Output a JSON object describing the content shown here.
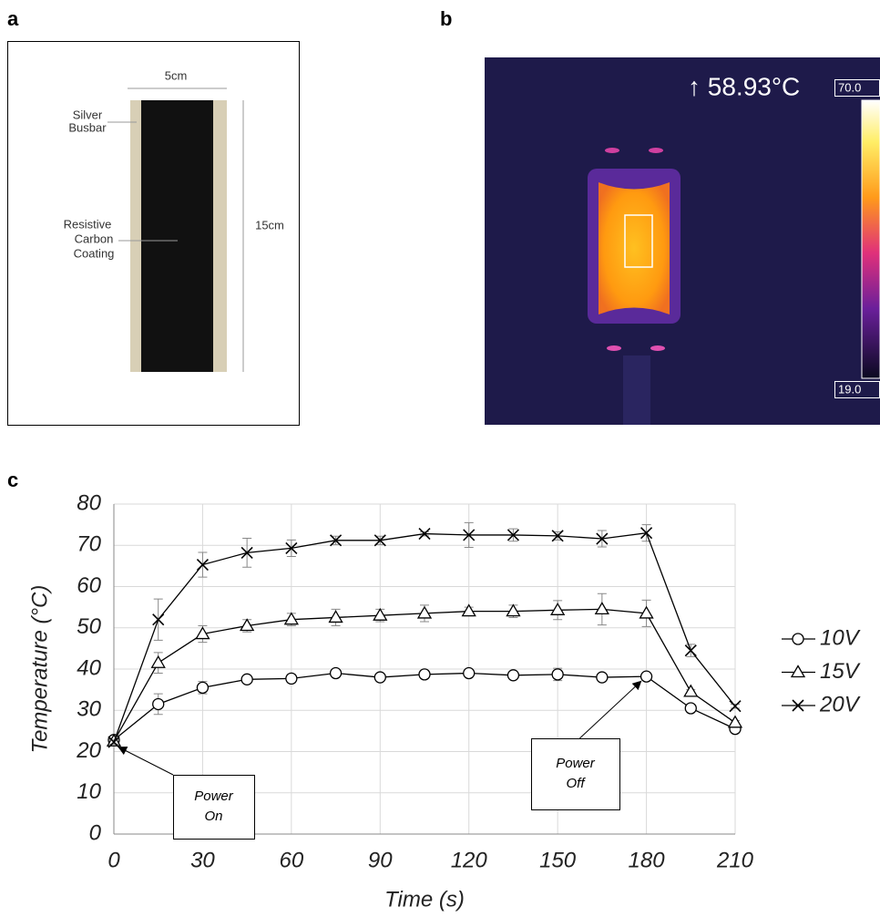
{
  "panels": {
    "a": {
      "label": "a",
      "width_label": "5cm",
      "height_label": "15cm",
      "busbar_label": [
        "Silver",
        "Busbar"
      ],
      "coating_label": [
        "Resistive",
        "Carbon",
        "Coating"
      ]
    },
    "b": {
      "label": "b",
      "max_temp": "↑ 58.93°C",
      "scale_max": "70.0",
      "scale_min": "19.0"
    },
    "c": {
      "label": "c"
    }
  },
  "chart_data": {
    "type": "line",
    "x_label": "Time (s)",
    "y_label": "Temperature (°C)",
    "x": [
      0,
      15,
      30,
      45,
      60,
      75,
      90,
      105,
      120,
      135,
      150,
      165,
      180,
      195,
      210
    ],
    "series": [
      {
        "name": "10V",
        "color": "#000000",
        "marker": "circle",
        "values": [
          22.8,
          31.5,
          35.5,
          37.5,
          37.7,
          39,
          38,
          38.7,
          39,
          38.5,
          38.7,
          38,
          38.2,
          30.5,
          25.5
        ],
        "errors": [
          0.5,
          2.5,
          1.5,
          0.8,
          1,
          0.5,
          0.5,
          0.5,
          0.5,
          0.5,
          1.5,
          0.8,
          0.8,
          0.5,
          0.5
        ]
      },
      {
        "name": "15V",
        "color": "#000000",
        "marker": "triangle",
        "values": [
          22.5,
          41.5,
          48.5,
          50.5,
          52,
          52.5,
          53,
          53.5,
          54,
          54,
          54.3,
          54.5,
          53.5,
          34.5,
          27
        ],
        "errors": [
          0.5,
          2.5,
          2,
          1.5,
          1.5,
          2,
          1.5,
          2,
          1,
          1.5,
          2.3,
          3.8,
          3.2,
          0.5,
          0.5
        ]
      },
      {
        "name": "20V",
        "color": "#000000",
        "marker": "x",
        "values": [
          22.3,
          52,
          65.3,
          68.2,
          69.3,
          71.2,
          71.2,
          72.8,
          72.5,
          72.5,
          72.3,
          71.6,
          73,
          44.5,
          31
        ],
        "errors": [
          0.5,
          5,
          3,
          3.5,
          2,
          1,
          1,
          0.5,
          3,
          1.5,
          1,
          2,
          2,
          1.5,
          0.5
        ]
      }
    ],
    "xlim": [
      0,
      210
    ],
    "ylim": [
      0,
      80
    ],
    "xticks": [
      0,
      30,
      60,
      90,
      120,
      150,
      180,
      210
    ],
    "yticks": [
      0,
      10,
      20,
      30,
      40,
      50,
      60,
      70,
      80
    ],
    "grid": true,
    "error_color": "#888888",
    "annotations": [
      [
        "Power",
        "On"
      ],
      [
        "Power",
        "Off"
      ]
    ]
  }
}
